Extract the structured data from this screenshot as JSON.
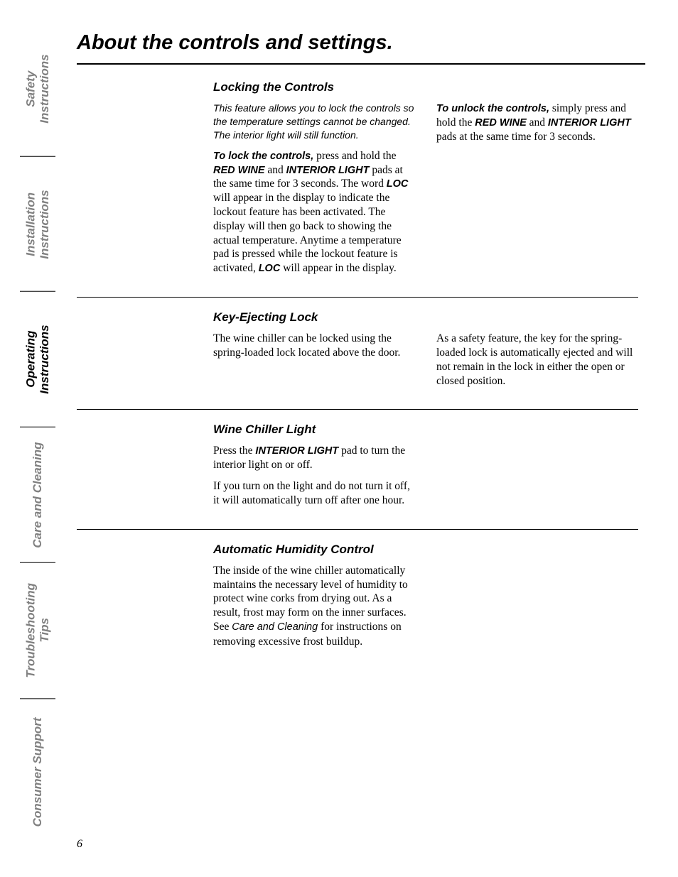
{
  "tabs": {
    "safety": "Safety Instructions",
    "installation_l1": "Installation",
    "installation_l2": "Instructions",
    "operating_l1": "Operating",
    "operating_l2": "Instructions",
    "care": "Care and Cleaning",
    "troubleshooting": "Troubleshooting Tips",
    "consumer": "Consumer Support"
  },
  "page_title": "About the controls and settings.",
  "page_number": "6",
  "sections": {
    "locking": {
      "heading": "Locking the Controls",
      "left": {
        "intro": "This feature allows you to lock the controls so the temperature settings cannot be changed. The interior light will still function.",
        "p2_lead": "To lock the controls,",
        "p2_a": " press and hold the ",
        "p2_red": "RED WINE",
        "p2_b": " and ",
        "p2_int": "INTERIOR LIGHT",
        "p2_c": " pads at the same time for 3 seconds. The word ",
        "p2_loc": "LOC",
        "p2_d": " will appear in the display to indicate the lockout feature has been activated. The display will then go back to showing the actual temperature. Anytime a temperature pad is pressed while the lockout feature is activated, ",
        "p2_loc2": "LOC",
        "p2_e": " will appear in the display."
      },
      "right": {
        "lead": "To unlock the controls,",
        "a": " simply press and hold the ",
        "red": "RED WINE",
        "b": " and ",
        "int": "INTERIOR LIGHT",
        "c": " pads at the same time for 3 seconds."
      }
    },
    "key": {
      "heading": "Key-Ejecting Lock",
      "left": "The wine chiller can be locked using the spring-loaded lock located above the door.",
      "right": "As a safety feature, the key for the spring-loaded lock is automatically ejected and will not remain in the lock in either the open or closed position."
    },
    "light": {
      "heading": "Wine Chiller Light",
      "p1_a": "Press the ",
      "p1_int": "INTERIOR LIGHT",
      "p1_b": " pad to turn the interior light on or off.",
      "p2": "If you turn on the light and do not turn it off, it will automatically turn off after one hour."
    },
    "humidity": {
      "heading": "Automatic Humidity Control",
      "p1_a": "The inside of the wine chiller automatically maintains the necessary level of humidity to protect wine corks from drying out. As a result, frost may form on the inner surfaces. See ",
      "p1_ref": "Care and Cleaning",
      "p1_b": " for instructions on removing excessive frost buildup."
    }
  }
}
